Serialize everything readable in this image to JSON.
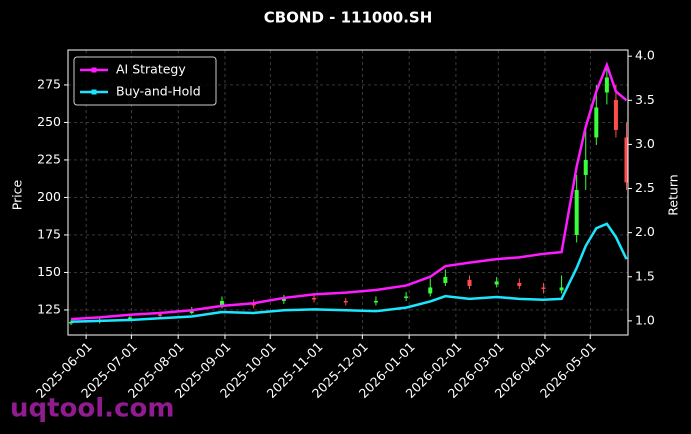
{
  "chart_data": {
    "type": "candlestick",
    "title": "CBOND - 111000.SH",
    "ylabel": "Price",
    "y2label": "Return",
    "x": [
      "2025-05-22",
      "2025-06-10",
      "2025-06-30",
      "2025-07-20",
      "2025-08-10",
      "2025-08-30",
      "2025-09-20",
      "2025-10-10",
      "2025-10-30",
      "2025-11-20",
      "2025-12-10",
      "2025-12-30",
      "2026-01-15",
      "2026-01-25",
      "2026-02-10",
      "2026-02-28",
      "2026-03-15",
      "2026-03-31",
      "2026-04-12",
      "2026-04-22",
      "2026-04-28",
      "2026-05-05",
      "2026-05-12",
      "2026-05-18",
      "2026-05-25"
    ],
    "open": [
      116,
      117,
      119,
      122,
      123,
      128,
      130,
      131,
      133,
      131,
      130,
      133,
      136,
      143,
      145,
      142,
      143,
      140,
      138,
      175,
      215,
      240,
      270,
      265,
      240
    ],
    "high": [
      118,
      120,
      122,
      124,
      127,
      134,
      132,
      135,
      135,
      133,
      134,
      137,
      146,
      152,
      148,
      147,
      146,
      143,
      148,
      215,
      245,
      275,
      288,
      275,
      250
    ],
    "low": [
      115,
      116,
      118,
      120,
      122,
      126,
      126,
      129,
      130,
      128,
      128,
      131,
      134,
      141,
      139,
      140,
      139,
      136,
      136,
      170,
      205,
      235,
      262,
      240,
      205
    ],
    "close": [
      117,
      118,
      120,
      121,
      124,
      131,
      128,
      133,
      132,
      130,
      131,
      134,
      140,
      147,
      141,
      144,
      141,
      139,
      140,
      205,
      225,
      260,
      280,
      245,
      210
    ],
    "up_color": "#39ff3a",
    "down_color": "#ff4d4d",
    "series": [
      {
        "name": "AI Strategy",
        "color": "#ff1aff",
        "axis": "y2",
        "values": [
          1.02,
          1.04,
          1.07,
          1.09,
          1.12,
          1.17,
          1.2,
          1.26,
          1.3,
          1.32,
          1.35,
          1.4,
          1.5,
          1.62,
          1.66,
          1.7,
          1.72,
          1.76,
          1.78,
          2.75,
          3.2,
          3.6,
          3.9,
          3.6,
          3.5
        ]
      },
      {
        "name": "Buy-and-Hold",
        "color": "#1ae6ff",
        "axis": "y2",
        "values": [
          0.99,
          1.0,
          1.01,
          1.03,
          1.05,
          1.1,
          1.09,
          1.12,
          1.13,
          1.12,
          1.11,
          1.15,
          1.22,
          1.28,
          1.25,
          1.27,
          1.25,
          1.24,
          1.25,
          1.6,
          1.85,
          2.05,
          2.1,
          1.95,
          1.7
        ]
      }
    ],
    "xlim": [
      "2025-05-20",
      "2026-05-26"
    ],
    "xticks": [
      "2025-06-01",
      "2025-07-01",
      "2025-08-01",
      "2025-09-01",
      "2025-10-01",
      "2025-11-01",
      "2025-12-01",
      "2026-01-01",
      "2026-02-01",
      "2026-03-01",
      "2026-04-01",
      "2026-05-01"
    ],
    "ylim": [
      108.3,
      298.3
    ],
    "yticks": [
      125,
      150,
      175,
      200,
      225,
      250,
      275
    ],
    "y2lim": [
      0.84,
      4.07
    ],
    "y2ticks": [
      {
        "value": 1,
        "label": "1.0"
      },
      1.5,
      {
        "value": 2,
        "label": "2.0"
      },
      2.5,
      {
        "value": 3,
        "label": "3.0"
      },
      3.5,
      {
        "value": 4,
        "label": "4.0"
      }
    ],
    "grid": true,
    "legend": "upper left"
  },
  "watermark": "uqtool.com"
}
